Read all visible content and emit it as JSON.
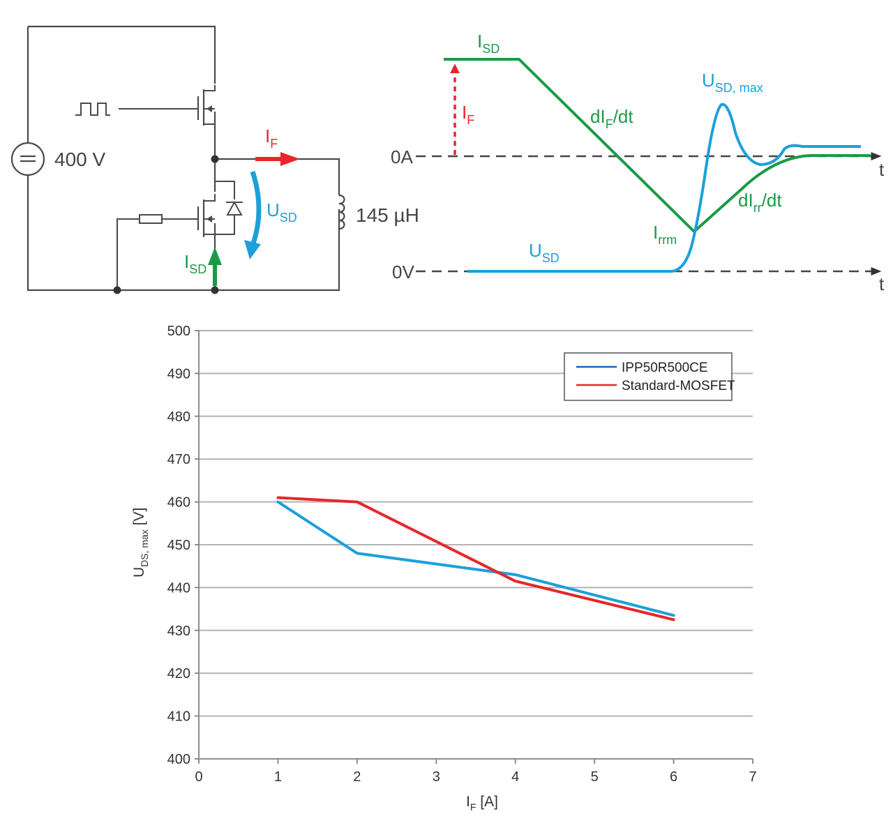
{
  "circuit": {
    "source_label": "400 V",
    "inductor_label": "145 µH",
    "if_label": {
      "main": "I",
      "sub": "F"
    },
    "usd_label": {
      "main": "U",
      "sub": "SD"
    },
    "isd_label": {
      "main": "I",
      "sub": "SD"
    },
    "colors": {
      "wire": "#4a4a4a",
      "red": "#e8262b",
      "blue": "#1ba0dc",
      "green": "#1a9a45"
    }
  },
  "waveform": {
    "isd_label": {
      "main": "I",
      "sub": "SD"
    },
    "if_label": {
      "main": "I",
      "sub": "F"
    },
    "dif_label": {
      "pre": "dI",
      "sub": "F",
      "post": "/dt"
    },
    "dirr_label": {
      "pre": "dI",
      "sub": "rr",
      "post": "/dt"
    },
    "irrm_label": {
      "main": "I",
      "sub": "rrm"
    },
    "usd_label": {
      "main": "U",
      "sub": "SD"
    },
    "usdmax_label": {
      "main": "U",
      "sub": "SD, max"
    },
    "zero_a": "0A",
    "zero_v": "0V",
    "t_upper": "t",
    "t_lower": "t"
  },
  "chart_data": {
    "type": "line",
    "xlabel": {
      "main": "I",
      "sub": "F",
      "post": " [A]"
    },
    "ylabel": {
      "main": "U",
      "sub": "DS, max",
      "post": " [V]"
    },
    "xlim": [
      0,
      7
    ],
    "ylim": [
      400,
      500
    ],
    "x_ticks": [
      "0",
      "1",
      "2",
      "3",
      "4",
      "5",
      "6",
      "7"
    ],
    "y_ticks": [
      "400",
      "410",
      "420",
      "430",
      "440",
      "450",
      "460",
      "470",
      "480",
      "490",
      "500"
    ],
    "grid": true,
    "legend_position": "top-right",
    "series": [
      {
        "name": "IPP50R500CE",
        "color": "#1ba0dc",
        "legend_color": "#1f5fbf",
        "x": [
          1,
          2,
          4,
          6
        ],
        "y": [
          460,
          448,
          443,
          433.5
        ]
      },
      {
        "name": "Standard-MOSFET",
        "color": "#e8262b",
        "legend_color": "#e8262b",
        "x": [
          1,
          2,
          4,
          6
        ],
        "y": [
          461,
          460,
          441.5,
          432.5
        ]
      }
    ]
  }
}
